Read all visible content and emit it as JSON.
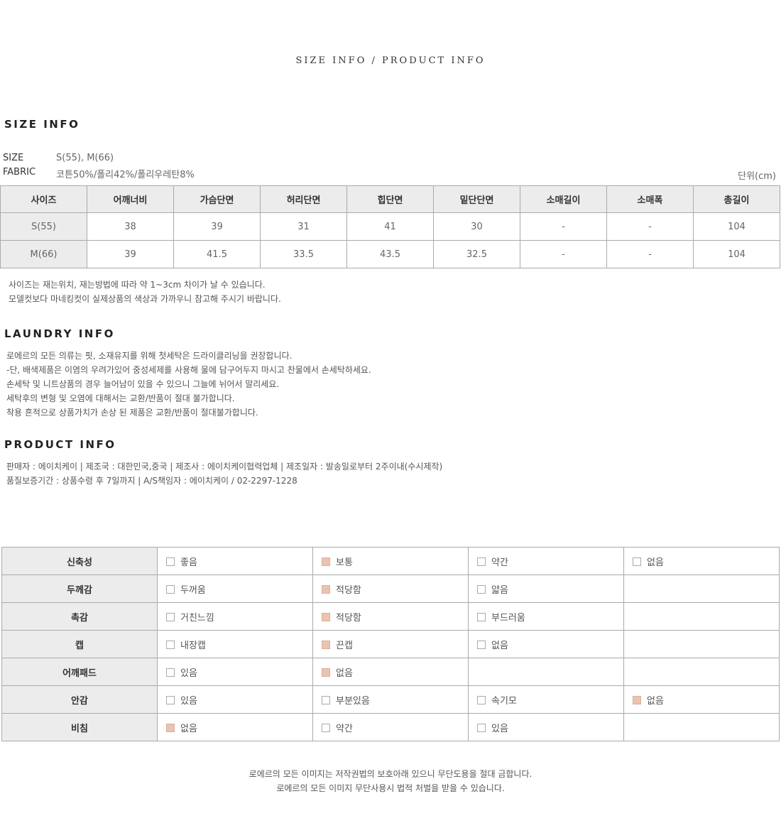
{
  "page_title": "SIZE INFO / PRODUCT INFO",
  "size_info": {
    "heading": "SIZE INFO",
    "size_label": "SIZE",
    "size_value": "S(55), M(66)",
    "fabric_label": "FABRIC",
    "fabric_value": "코튼50%/폴리42%/폴리우레탄8%",
    "unit": "단위(cm)",
    "table": {
      "headers": [
        "사이즈",
        "어깨너비",
        "가슴단면",
        "허리단면",
        "힙단면",
        "밑단단면",
        "소매길이",
        "소매폭",
        "총길이"
      ],
      "rows": [
        [
          "S(55)",
          "38",
          "39",
          "31",
          "41",
          "30",
          "-",
          "-",
          "104"
        ],
        [
          "M(66)",
          "39",
          "41.5",
          "33.5",
          "43.5",
          "32.5",
          "-",
          "-",
          "104"
        ]
      ]
    },
    "notes": [
      "사이즈는 재는위치, 재는방법에 따라 약 1~3cm 차이가 날 수 있습니다.",
      "모델컷보다 마네킹컷이 실제상품의 색상과 가까우니 참고해 주시기 바랍니다."
    ]
  },
  "laundry_info": {
    "heading": "LAUNDRY INFO",
    "lines": [
      "로에르의 모든 의류는 핏, 소재유지를 위해 첫세탁은 드라이클리닝을 권장합니다.",
      "-단, 배색제품은 이염의 우려가있어 중성세제를 사용해 물에 담구어두지 마시고 찬물에서 손세탁하세요.",
      "손세탁 및 니트상품의 경우 늘어남이 있을 수 있으니 그늘에 뉘어서 말리세요.",
      "세탁후의 변형 및 오염에 대해서는 교환/반품이 절대 불가합니다.",
      "착용 흔적으로 상품가치가 손상 된 제품은 교환/반품이 절대불가합니다."
    ]
  },
  "product_info": {
    "heading": "PRODUCT INFO",
    "lines": [
      "판매자 : 에이치케이 | 제조국 : 대한민국,중국 | 제조사 : 에이치케이협력업체 | 제조일자 : 발송일로부터 2주이내(수시제작)",
      "품질보증기간 : 상품수령 후 7일까지 | A/S책임자 : 에이치케이 / 02-2297-1228"
    ]
  },
  "attributes": {
    "check_color": "#ebc4b0",
    "rows": [
      {
        "label": "신축성",
        "options": [
          {
            "text": "좋음",
            "checked": false
          },
          {
            "text": "보통",
            "checked": true
          },
          {
            "text": "약간",
            "checked": false
          },
          {
            "text": "없음",
            "checked": false
          }
        ]
      },
      {
        "label": "두께감",
        "options": [
          {
            "text": "두꺼움",
            "checked": false
          },
          {
            "text": "적당함",
            "checked": true
          },
          {
            "text": "얇음",
            "checked": false
          }
        ]
      },
      {
        "label": "촉감",
        "options": [
          {
            "text": "거친느낌",
            "checked": false
          },
          {
            "text": "적당함",
            "checked": true
          },
          {
            "text": "부드러움",
            "checked": false
          }
        ]
      },
      {
        "label": "캡",
        "options": [
          {
            "text": "내장캡",
            "checked": false
          },
          {
            "text": "끈캡",
            "checked": true
          },
          {
            "text": "없음",
            "checked": false
          }
        ]
      },
      {
        "label": "어깨패드",
        "options": [
          {
            "text": "있음",
            "checked": false
          },
          {
            "text": "없음",
            "checked": true
          }
        ]
      },
      {
        "label": "안감",
        "options": [
          {
            "text": "있음",
            "checked": false
          },
          {
            "text": "부분있음",
            "checked": false
          },
          {
            "text": "속기모",
            "checked": false
          },
          {
            "text": "없음",
            "checked": true
          }
        ]
      },
      {
        "label": "비침",
        "options": [
          {
            "text": "없음",
            "checked": true
          },
          {
            "text": "약간",
            "checked": false
          },
          {
            "text": "있음",
            "checked": false
          }
        ]
      }
    ]
  },
  "footer": [
    "로에르의 모든 이미지는 저작권법의 보호아래 있으니 무단도용을 절대 금합니다.",
    "로에르의 모든 이미지 무단사용시 법적 처벌을 받을 수 있습니다."
  ]
}
